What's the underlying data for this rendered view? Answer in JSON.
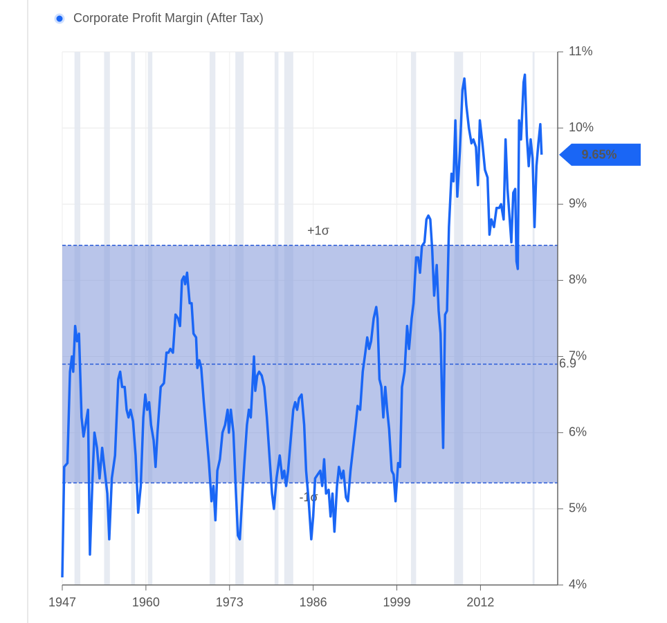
{
  "chart_data": {
    "type": "line",
    "series": [
      {
        "name": "Corporate Profit Margin (After Tax)",
        "color": "#1a66f5",
        "x": [
          1947.0,
          1947.3,
          1947.8,
          1948.2,
          1948.5,
          1948.7,
          1949.0,
          1949.3,
          1949.6,
          1950.0,
          1950.3,
          1950.6,
          1951.0,
          1951.3,
          1951.7,
          1952.0,
          1952.4,
          1952.8,
          1953.2,
          1953.6,
          1954.0,
          1954.3,
          1954.7,
          1955.2,
          1955.7,
          1956.0,
          1956.3,
          1956.7,
          1957.0,
          1957.3,
          1957.6,
          1958.0,
          1958.4,
          1958.8,
          1959.2,
          1959.6,
          1959.9,
          1960.2,
          1960.5,
          1960.8,
          1961.2,
          1961.5,
          1961.8,
          1962.3,
          1962.8,
          1963.2,
          1963.5,
          1963.8,
          1964.2,
          1964.6,
          1965.0,
          1965.3,
          1965.6,
          1965.9,
          1966.1,
          1966.4,
          1966.8,
          1967.1,
          1967.4,
          1967.8,
          1968.0,
          1968.3,
          1968.6,
          1969.0,
          1969.4,
          1969.8,
          1970.2,
          1970.5,
          1970.8,
          1971.1,
          1971.5,
          1971.9,
          1972.3,
          1972.7,
          1972.9,
          1973.2,
          1973.6,
          1974.0,
          1974.3,
          1974.6,
          1975.0,
          1975.3,
          1975.7,
          1976.0,
          1976.3,
          1976.8,
          1977.0,
          1977.3,
          1977.6,
          1978.0,
          1978.4,
          1978.8,
          1979.2,
          1979.6,
          1979.9,
          1980.3,
          1980.8,
          1981.2,
          1981.5,
          1981.8,
          1982.1,
          1982.5,
          1982.9,
          1983.2,
          1983.5,
          1983.8,
          1984.2,
          1984.6,
          1984.9,
          1985.3,
          1985.7,
          1986.0,
          1986.3,
          1986.7,
          1987.1,
          1987.4,
          1987.7,
          1988.0,
          1988.4,
          1988.7,
          1989.0,
          1989.3,
          1989.7,
          1990.0,
          1990.4,
          1990.7,
          1991.1,
          1991.4,
          1991.8,
          1992.2,
          1992.6,
          1992.9,
          1993.3,
          1993.7,
          1994.1,
          1994.4,
          1994.7,
          1995.0,
          1995.4,
          1995.8,
          1996.0,
          1996.3,
          1996.6,
          1996.9,
          1997.2,
          1997.5,
          1997.8,
          1998.2,
          1998.5,
          1998.8,
          1999.2,
          1999.5,
          1999.8,
          2000.2,
          2000.6,
          2000.9,
          2001.3,
          2001.6,
          2002.0,
          2002.3,
          2002.6,
          2002.9,
          2003.3,
          2003.6,
          2003.9,
          2004.2,
          2004.5,
          2004.8,
          2005.2,
          2005.5,
          2005.8,
          2006.2,
          2006.5,
          2006.8,
          2007.1,
          2007.5,
          2007.8,
          2008.1,
          2008.4,
          2008.8,
          2009.2,
          2009.5,
          2009.8,
          2010.2,
          2010.6,
          2010.9,
          2011.3,
          2011.6,
          2011.9,
          2012.3,
          2012.7,
          2013.1,
          2013.4,
          2013.7,
          2014.1,
          2014.5,
          2014.9,
          2015.2,
          2015.6,
          2015.9,
          2016.2,
          2016.5,
          2016.8,
          2017.1,
          2017.4,
          2017.6,
          2017.8,
          2018.0,
          2018.3,
          2018.7,
          2018.9,
          2019.2,
          2019.5,
          2019.8,
          2020.1,
          2020.4,
          2020.7,
          2021.0,
          2021.3,
          2021.5
        ],
        "values": [
          4.1,
          5.55,
          5.6,
          6.8,
          7.0,
          6.8,
          7.4,
          7.2,
          7.3,
          6.2,
          5.95,
          6.1,
          6.3,
          4.4,
          5.4,
          6.0,
          5.8,
          5.4,
          5.8,
          5.5,
          5.2,
          4.6,
          5.4,
          5.7,
          6.7,
          6.8,
          6.6,
          6.6,
          6.3,
          6.2,
          6.3,
          6.15,
          5.7,
          4.95,
          5.3,
          6.2,
          6.5,
          6.3,
          6.4,
          6.1,
          5.9,
          5.55,
          6.0,
          6.6,
          6.65,
          7.05,
          7.05,
          7.1,
          7.05,
          7.55,
          7.5,
          7.4,
          8.0,
          8.05,
          7.95,
          8.1,
          7.7,
          7.7,
          7.3,
          7.25,
          6.85,
          6.95,
          6.85,
          6.4,
          6.0,
          5.6,
          5.1,
          5.3,
          4.85,
          5.5,
          5.65,
          6.0,
          6.1,
          6.3,
          6.0,
          6.3,
          6.0,
          5.2,
          4.65,
          4.6,
          5.2,
          5.6,
          6.1,
          6.3,
          6.2,
          7.0,
          6.55,
          6.75,
          6.8,
          6.75,
          6.6,
          6.2,
          5.7,
          5.2,
          5.0,
          5.4,
          5.7,
          5.4,
          5.5,
          5.3,
          5.5,
          5.9,
          6.3,
          6.4,
          6.3,
          6.45,
          6.5,
          6.1,
          5.5,
          5.1,
          4.6,
          4.9,
          5.4,
          5.45,
          5.5,
          5.3,
          5.65,
          5.2,
          5.25,
          4.9,
          5.2,
          4.7,
          5.3,
          5.55,
          5.4,
          5.5,
          5.15,
          5.1,
          5.5,
          5.8,
          6.1,
          6.35,
          6.3,
          6.8,
          7.05,
          7.25,
          7.1,
          7.2,
          7.5,
          7.65,
          7.5,
          6.7,
          6.6,
          6.2,
          6.6,
          6.3,
          6.05,
          5.5,
          5.45,
          5.1,
          5.6,
          5.55,
          6.6,
          6.8,
          7.4,
          7.1,
          7.5,
          7.7,
          8.3,
          8.3,
          8.1,
          8.45,
          8.5,
          8.8,
          8.85,
          8.8,
          8.4,
          7.8,
          8.2,
          7.6,
          7.3,
          5.8,
          7.55,
          7.6,
          8.7,
          9.4,
          9.3,
          10.1,
          9.1,
          9.7,
          10.5,
          10.65,
          10.3,
          10.0,
          9.8,
          9.85,
          9.75,
          9.25,
          10.1,
          9.8,
          9.45,
          9.35,
          8.6,
          8.8,
          8.7,
          8.95,
          8.95,
          9.0,
          8.8,
          9.85,
          9.2,
          8.85,
          8.5,
          9.15,
          9.2,
          8.25,
          8.15,
          10.1,
          9.85,
          10.6,
          10.7,
          9.9,
          9.5,
          9.85,
          9.6,
          8.7,
          9.5,
          9.8,
          10.05,
          9.65
        ]
      }
    ],
    "last_value": {
      "value": 9.65,
      "label": "9.65%"
    },
    "reference_lines": [
      {
        "value": 8.46,
        "label": "+1σ"
      },
      {
        "value": 6.9,
        "label": 6.9
      },
      {
        "value": 5.34,
        "label": "-1σ"
      }
    ],
    "band": [
      5.34,
      8.46
    ],
    "shaded_periods": [
      [
        1948.9,
        1949.8
      ],
      [
        1953.5,
        1954.4
      ],
      [
        1957.7,
        1958.3
      ],
      [
        1960.3,
        1961.0
      ],
      [
        1969.9,
        1970.8
      ],
      [
        1973.9,
        1975.2
      ],
      [
        1980.0,
        1980.6
      ],
      [
        1981.5,
        1982.9
      ],
      [
        2001.2,
        2002.0
      ],
      [
        2007.9,
        2009.3
      ],
      [
        2020.1,
        2020.4
      ]
    ],
    "xlim": [
      1947,
      2024
    ],
    "xticks": [
      1947,
      1960,
      1973,
      1986,
      1999,
      2012
    ],
    "ylim": [
      4,
      11
    ],
    "yticks": [
      {
        "value": 4,
        "label": "4%"
      },
      {
        "value": 5,
        "label": "5%"
      },
      {
        "value": 6,
        "label": "6%"
      },
      {
        "value": 7,
        "label": "7%"
      },
      {
        "value": 8,
        "label": "8%"
      },
      {
        "value": 9,
        "label": "9%"
      },
      {
        "value": 10,
        "label": "10%"
      },
      {
        "value": 11,
        "label": "11%"
      }
    ],
    "y_axis_side": "right",
    "grid": true
  }
}
